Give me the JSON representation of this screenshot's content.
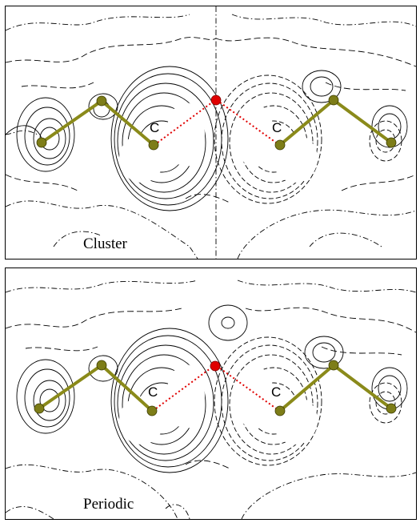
{
  "panels": [
    {
      "label": "Cluster",
      "atom_labels": [
        "C",
        "C"
      ]
    },
    {
      "label": "Periodic",
      "atom_labels": [
        "C",
        "C"
      ]
    }
  ],
  "colors": {
    "bond": "#8a8a1a",
    "atom": "#7d7d18",
    "oxygen": "#e00000",
    "dotted_bond": "#e00000",
    "contour": "#000000"
  }
}
